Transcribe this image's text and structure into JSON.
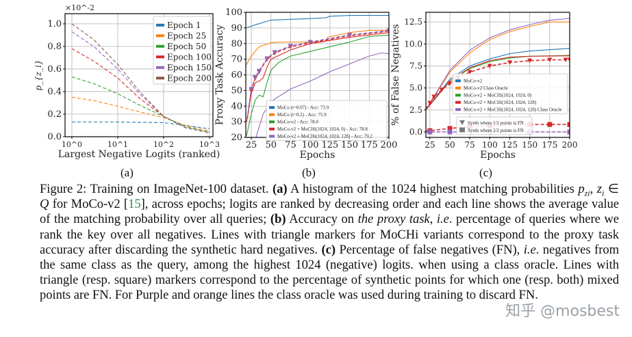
{
  "chart_data": [
    {
      "type": "line",
      "panel_label": "(a)",
      "xlabel": "Largest Negative Logits (ranked)",
      "ylabel": "p_{z_i}",
      "y_multiplier": "×10^-2",
      "xscale": "log",
      "xlim": [
        0.71,
        1190
      ],
      "ylim": [
        0,
        1.09
      ],
      "xticks": [
        1,
        10,
        100,
        1000
      ],
      "xtick_labels": [
        "10^0",
        "10^1",
        "10^2",
        "10^3"
      ],
      "yticks": [
        0,
        0.2,
        0.4,
        0.6,
        0.8,
        1.0
      ],
      "ytick_labels": [
        "0.0",
        "0.2",
        "0.4",
        "0.6",
        "0.8",
        "1.0"
      ],
      "grid": true,
      "legend_position": "top-right",
      "series": [
        {
          "name": "Epoch 1",
          "color": "#1f77b4",
          "dash": true,
          "x": [
            1,
            10,
            100,
            200,
            1000
          ],
          "y": [
            0.13,
            0.13,
            0.125,
            0.11,
            0.07
          ]
        },
        {
          "name": "Epoch 25",
          "color": "#ff7f0e",
          "dash": true,
          "x": [
            1,
            3,
            10,
            30,
            100,
            300,
            1000
          ],
          "y": [
            0.35,
            0.32,
            0.27,
            0.22,
            0.17,
            0.1,
            0.05
          ]
        },
        {
          "name": "Epoch 50",
          "color": "#2ca02c",
          "dash": true,
          "x": [
            1,
            3,
            10,
            30,
            100,
            300,
            1000
          ],
          "y": [
            0.53,
            0.47,
            0.38,
            0.28,
            0.18,
            0.09,
            0.04
          ]
        },
        {
          "name": "Epoch 100",
          "color": "#d62728",
          "dash": true,
          "x": [
            1,
            3,
            10,
            30,
            100,
            300,
            1000
          ],
          "y": [
            0.78,
            0.67,
            0.52,
            0.34,
            0.18,
            0.08,
            0.035
          ]
        },
        {
          "name": "Epoch 150",
          "color": "#9467bd",
          "dash": true,
          "x": [
            1,
            3,
            10,
            30,
            100,
            300,
            1000
          ],
          "y": [
            0.93,
            0.8,
            0.6,
            0.38,
            0.18,
            0.08,
            0.035
          ]
        },
        {
          "name": "Epoch 200",
          "color": "#8c564b",
          "dash": true,
          "x": [
            1,
            3,
            10,
            30,
            100,
            300,
            1000
          ],
          "y": [
            1.0,
            0.86,
            0.64,
            0.4,
            0.18,
            0.08,
            0.035
          ]
        }
      ]
    },
    {
      "type": "line",
      "panel_label": "(b)",
      "xlabel": "Epochs",
      "ylabel": "Proxy Task Accuracy",
      "xscale": "linear",
      "xlim": [
        18,
        200
      ],
      "ylim": [
        20,
        100
      ],
      "xticks": [
        25,
        50,
        75,
        100,
        125,
        150,
        175,
        200
      ],
      "xtick_labels": [
        "25",
        "50",
        "75",
        "100",
        "125",
        "150",
        "175",
        "200"
      ],
      "yticks": [
        20,
        30,
        40,
        50,
        60,
        70,
        80,
        90,
        100
      ],
      "ytick_labels": [
        "20",
        "30",
        "40",
        "50",
        "60",
        "70",
        "80",
        "90",
        "100"
      ],
      "grid": true,
      "legend_position": "lower-right",
      "series": [
        {
          "name": "MoCo (t=0.07) - Acc: 73.9",
          "color": "#1f77b4",
          "x": [
            18,
            30,
            50,
            75,
            100,
            120,
            125,
            150,
            200
          ],
          "y": [
            90,
            92,
            95,
            95.5,
            96,
            96.5,
            97.5,
            98,
            98
          ]
        },
        {
          "name": "MoCo (t=0.2) - Acc: 75.9",
          "color": "#ff7f0e",
          "x": [
            18,
            25,
            35,
            50,
            60,
            100,
            120,
            122,
            150,
            175,
            200
          ],
          "y": [
            66,
            72,
            78,
            80.5,
            81,
            81,
            81.5,
            84,
            87,
            88.5,
            88.5
          ]
        },
        {
          "name": "MoCo-v2 - Acc: 78.0",
          "color": "#2ca02c",
          "x": [
            19,
            25,
            30,
            35,
            40,
            45,
            50,
            60,
            75,
            100,
            125,
            150,
            175,
            200
          ],
          "y": [
            21,
            35,
            44,
            47,
            46,
            55,
            63,
            68,
            72,
            75,
            78,
            81,
            84.5,
            85.5
          ]
        },
        {
          "name": "MoCo-v2 + MoCHi(1024, 1024, 0) - Acc: 78.8",
          "color": "#d62728",
          "x": [
            19,
            25,
            30,
            35,
            40,
            45,
            50,
            75,
            100,
            150,
            200
          ],
          "y": [
            30,
            48,
            55,
            56,
            58,
            65,
            70,
            76,
            80,
            84,
            87
          ]
        },
        {
          "name": "MoCo-v2 + MoCHi(1024, 1024, 128) - Acc: 79.2",
          "color": "#9467bd",
          "x": [
            31,
            40,
            50,
            75,
            100,
            125,
            150,
            175,
            190,
            200
          ],
          "y": [
            20,
            35,
            43,
            51,
            56,
            62,
            67,
            72,
            74,
            73.5
          ]
        },
        {
          "color": "#d62728",
          "dash": true,
          "marker": "triangle",
          "x": [
            20,
            25,
            30,
            35,
            45,
            55,
            75,
            100,
            150,
            200
          ],
          "y": [
            32,
            50,
            58,
            62,
            70,
            74,
            78,
            80.5,
            85,
            88
          ]
        },
        {
          "color": "#9467bd",
          "dash": true,
          "marker": "triangle",
          "x": [
            20,
            25,
            30,
            35,
            45,
            55,
            75,
            100,
            150,
            200
          ],
          "y": [
            33,
            51,
            58.5,
            62.5,
            70.5,
            74.5,
            78.5,
            81,
            85.5,
            88.3
          ]
        }
      ]
    },
    {
      "type": "line",
      "panel_label": "(c)",
      "xlabel": "Epochs",
      "ylabel": "% of False Negatives",
      "xscale": "linear",
      "xlim": [
        20,
        200
      ],
      "ylim": [
        -0.62,
        13.6
      ],
      "xticks": [
        25,
        50,
        75,
        100,
        125,
        150,
        175,
        200
      ],
      "xtick_labels": [
        "25",
        "50",
        "75",
        "100",
        "125",
        "150",
        "175",
        "200"
      ],
      "yticks": [
        0,
        2.5,
        5,
        7.5,
        10,
        12.5
      ],
      "ytick_labels": [
        "0.0",
        "2.5",
        "5.0",
        "7.5",
        "10.0",
        "12.5"
      ],
      "grid": true,
      "legend_position": "center",
      "series": [
        {
          "name": "MoCo-v2",
          "color": "#1f77b4",
          "x": [
            20,
            50,
            75,
            100,
            125,
            150,
            200
          ],
          "y": [
            2.5,
            6,
            7.5,
            8.3,
            8.9,
            9.2,
            9.5
          ]
        },
        {
          "name": "MoCo-v2 Class Oracle",
          "color": "#ff7f0e",
          "x": [
            20,
            50,
            75,
            100,
            125,
            150,
            175,
            200
          ],
          "y": [
            2.5,
            6.8,
            9,
            10.5,
            11.4,
            12,
            12.5,
            12.5
          ]
        },
        {
          "name": "MoCo-v2 + MoCHi(1024, 1024, 0)",
          "color": "#2ca02c",
          "x": [
            20,
            50,
            75,
            100,
            125,
            150,
            200
          ],
          "y": [
            2.5,
            5.8,
            7.2,
            8,
            8.4,
            8.6,
            8.7
          ]
        },
        {
          "name": "MoCo-v2 + MoCHi(1024, 1024, 128)",
          "color": "#d62728",
          "x": [
            20,
            50,
            75,
            100,
            125,
            150,
            200
          ],
          "y": [
            2.5,
            5.8,
            7.3,
            8.1,
            8.5,
            8.6,
            8.65
          ]
        },
        {
          "name": "MoCo-v2 + MoCHi(1024, 1024, 128) Class Oracle",
          "color": "#9467bd",
          "x": [
            20,
            50,
            75,
            100,
            125,
            150,
            175,
            200
          ],
          "y": [
            2.5,
            7,
            9.3,
            10.7,
            11.6,
            12.2,
            12.7,
            12.9
          ]
        },
        {
          "color": "#d62728",
          "dash": true,
          "marker": "triangle",
          "x": [
            20,
            25,
            30,
            40,
            50,
            60,
            75,
            100,
            125,
            150,
            175,
            195,
            200
          ],
          "y": [
            2.6,
            3.3,
            4,
            4.8,
            5.5,
            6.1,
            6.8,
            7.5,
            7.9,
            8.1,
            8.2,
            8.2,
            8.2
          ]
        },
        {
          "color": "#d62728",
          "dash": true,
          "marker": "square",
          "x": [
            20,
            25,
            50,
            75,
            100,
            150,
            175,
            200
          ],
          "y": [
            0.1,
            0.15,
            0.4,
            0.6,
            0.7,
            0.85,
            0.85,
            0.85
          ]
        },
        {
          "color": "#9467bd",
          "dash": true,
          "marker": "square",
          "x": [
            20,
            25,
            50,
            100,
            150,
            200
          ],
          "y": [
            0,
            0,
            0,
            0,
            0,
            0
          ]
        }
      ],
      "marker_legend": [
        {
          "marker": "triangle",
          "label": "Synth where 1/2 points is FN"
        },
        {
          "marker": "square",
          "label": "Synth where 2/2 points is FN"
        }
      ]
    }
  ],
  "caption": {
    "segments": [
      {
        "text": "Figure 2: Training on ImageNet-100 dataset. ",
        "style": ""
      },
      {
        "text": "(a)",
        "style": "b"
      },
      {
        "text": " A histogram of the 1024 highest matching probabilities ",
        "style": ""
      },
      {
        "text": "p",
        "style": "i"
      },
      {
        "text": "zi",
        "style": "sub"
      },
      {
        "text": ", ",
        "style": ""
      },
      {
        "text": "z",
        "style": "i"
      },
      {
        "text": "i",
        "style": "sub"
      },
      {
        "text": " ∈ ",
        "style": ""
      },
      {
        "text": "Q",
        "style": "i"
      },
      {
        "text": " for MoCo-v2 [",
        "style": ""
      },
      {
        "text": "15",
        "style": "cite"
      },
      {
        "text": "], across epochs; logits are ranked by decreasing order and each line shows the average value of the matching probability over all queries; ",
        "style": ""
      },
      {
        "text": "(b)",
        "style": "b"
      },
      {
        "text": " Accuracy on ",
        "style": ""
      },
      {
        "text": "the proxy task",
        "style": "i"
      },
      {
        "text": ", ",
        "style": ""
      },
      {
        "text": "i.e",
        "style": "i"
      },
      {
        "text": ". percentage of queries where we rank the key over all negatives. Lines with triangle markers for MoCHi variants correspond to the proxy task accuracy after discarding the synthetic hard negatives. ",
        "style": ""
      },
      {
        "text": "(c)",
        "style": "b"
      },
      {
        "text": " Percentage of false negatives (FN), ",
        "style": ""
      },
      {
        "text": "i.e",
        "style": "i"
      },
      {
        "text": ". negatives from the same class as the query, among the highest 1024 (negative) logits. when using a class oracle. Lines with triangle (resp. square) markers correspond to the percentage of synthetic points for which one (resp. both) mixed points are FN. For Purple and orange lines the class oracle was used during training to discard FN.",
        "style": ""
      }
    ]
  },
  "watermark": "知乎 @mosbest"
}
